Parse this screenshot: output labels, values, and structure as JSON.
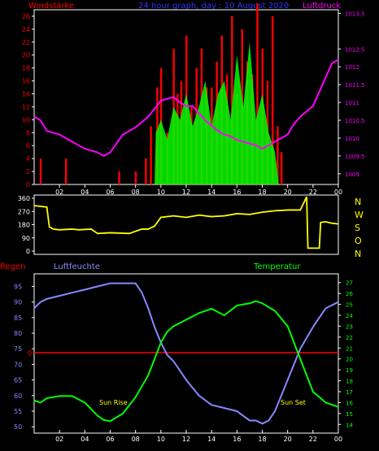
{
  "header": {
    "left": "Windstärke",
    "center": "24 hour graph, day : 10 August 2020",
    "right": "Luftdruck"
  },
  "lower_header": {
    "left": "Regen",
    "center": "Luftfeuchte",
    "right": "Temperatur"
  },
  "annotations": {
    "sunrise": "Sun Rise",
    "sunset": "Sun Set"
  },
  "colors": {
    "wind": "#ff0000",
    "gust": "#00ff00",
    "pressure": "#ff00ff",
    "direction": "#ffff00",
    "humidity": "#8888ff",
    "temperature": "#00ff00",
    "rain": "#ff0000",
    "header_blue": "#3333ff",
    "frame": "#ffffff"
  },
  "chart_data": [
    {
      "type": "bar",
      "panel": "wind",
      "x_ticks": [
        "02",
        "04",
        "06",
        "08",
        "10",
        "12",
        "14",
        "16",
        "18",
        "20",
        "22",
        "00"
      ],
      "y_ticks_left": [
        "0",
        "2",
        "4",
        "6",
        "8",
        "10",
        "12",
        "14",
        "16",
        "18",
        "20",
        "22",
        "24",
        "26"
      ],
      "y_ticks_right": [
        "1009",
        "1009.5",
        "1010",
        "1010.5",
        "1011",
        "1011.5",
        "1012",
        "1012.5",
        "1013.5"
      ],
      "series": [
        {
          "name": "Windstärke",
          "x": [
            0.5,
            2.5,
            6.7,
            8.0,
            8.8,
            9.2,
            9.7,
            10.0,
            10.5,
            11.0,
            11.3,
            11.6,
            12.0,
            12.4,
            12.8,
            13.2,
            13.6,
            14.0,
            14.4,
            14.8,
            15.2,
            15.6,
            16.0,
            16.4,
            16.8,
            17.2,
            17.6,
            18.0,
            18.4,
            18.8,
            19.2,
            19.5
          ],
          "values": [
            4,
            4,
            2,
            2,
            4,
            9,
            15,
            18,
            8,
            21,
            14,
            16,
            23,
            12,
            18,
            21,
            15,
            15,
            19,
            23,
            17,
            26,
            14,
            24,
            19,
            17,
            28,
            21,
            16,
            26,
            9,
            5
          ]
        },
        {
          "name": "Luftdruck",
          "x": [
            0.0,
            0.5,
            1.0,
            2.0,
            3.0,
            4.0,
            5.0,
            5.5,
            6.0,
            7.0,
            7.5,
            8.0,
            9.0,
            10.0,
            10.5,
            11.0,
            11.5,
            12.0,
            12.5,
            13.0,
            13.5,
            14.0,
            14.5,
            15.0,
            15.5,
            16.0,
            17.0,
            17.5,
            18.0,
            18.5,
            19.0,
            20.0,
            20.5,
            21.0,
            22.0,
            22.5,
            23.0,
            23.5,
            24.0
          ],
          "values": [
            1010.6,
            1010.5,
            1010.2,
            1010.1,
            1009.9,
            1009.7,
            1009.6,
            1009.5,
            1009.6,
            1010.1,
            1010.2,
            1010.3,
            1010.6,
            1011.05,
            1011.1,
            1011.15,
            1011.0,
            1010.9,
            1010.9,
            1010.7,
            1010.5,
            1010.35,
            1010.2,
            1010.1,
            1010.05,
            1009.95,
            1009.85,
            1009.8,
            1009.7,
            1009.8,
            1009.9,
            1010.1,
            1010.4,
            1010.6,
            1010.9,
            1011.3,
            1011.7,
            1012.1,
            1012.2
          ]
        }
      ]
    },
    {
      "type": "line",
      "panel": "direction",
      "y_ticks": [
        "360",
        "270",
        "180",
        "90",
        "0"
      ],
      "y_labels_right": [
        "N",
        "W",
        "S",
        "O",
        "N"
      ],
      "series": [
        {
          "name": "Windrichtung",
          "x": [
            0.0,
            1.0,
            1.2,
            1.5,
            2.0,
            3.0,
            3.5,
            4.5,
            5.0,
            6.0,
            7.5,
            8.5,
            9.0,
            9.5,
            10.0,
            11.0,
            12.0,
            13.0,
            13.5,
            14.0,
            15.0,
            16.0,
            17.0,
            18.0,
            19.0,
            20.0,
            21.0,
            21.5,
            21.6,
            22.5,
            22.6,
            23.0,
            23.5,
            24.0
          ],
          "values": [
            310,
            300,
            165,
            150,
            145,
            150,
            145,
            150,
            120,
            125,
            120,
            150,
            150,
            170,
            230,
            240,
            230,
            245,
            240,
            235,
            240,
            255,
            250,
            265,
            275,
            280,
            280,
            370,
            20,
            20,
            195,
            200,
            190,
            185
          ]
        }
      ]
    },
    {
      "type": "line",
      "panel": "humidity_temperature",
      "y_ticks_left": [
        "50",
        "55",
        "60",
        "65",
        "70",
        "75",
        "80",
        "85",
        "90",
        "95"
      ],
      "y_ticks_right": [
        "14",
        "15",
        "16",
        "17",
        "18",
        "19",
        "20",
        "21",
        "22",
        "23",
        "24",
        "25",
        "26",
        "27"
      ],
      "series": [
        {
          "name": "Luftfeuchte",
          "x": [
            0.0,
            0.5,
            1.0,
            2.0,
            3.0,
            4.0,
            5.0,
            6.0,
            7.0,
            8.0,
            8.5,
            9.0,
            9.5,
            10.0,
            10.5,
            11.0,
            11.5,
            12.0,
            13.0,
            14.0,
            15.0,
            16.0,
            17.0,
            17.5,
            18.0,
            18.5,
            19.0,
            20.0,
            21.0,
            22.0,
            23.0,
            24.0
          ],
          "values": [
            88,
            90,
            91,
            92,
            93,
            94,
            95,
            96,
            96,
            96,
            93,
            88,
            82,
            77,
            73,
            71,
            68,
            65,
            60,
            57,
            56,
            55,
            52,
            52,
            51,
            52,
            55,
            65,
            75,
            82,
            88,
            90
          ]
        },
        {
          "name": "Temperatur",
          "x": [
            0.0,
            0.5,
            1.0,
            2.0,
            3.0,
            4.0,
            5.0,
            5.5,
            6.0,
            7.0,
            8.0,
            9.0,
            9.5,
            10.0,
            10.5,
            11.0,
            12.0,
            13.0,
            14.0,
            15.0,
            16.0,
            17.0,
            17.5,
            18.0,
            19.0,
            20.0,
            21.0,
            22.0,
            23.0,
            24.0
          ],
          "values": [
            16.2,
            16.0,
            16.4,
            16.6,
            16.6,
            16.0,
            14.8,
            14.4,
            14.3,
            15.0,
            16.5,
            18.5,
            20.0,
            21.5,
            22.5,
            23.0,
            23.6,
            24.2,
            24.6,
            24.0,
            24.9,
            25.1,
            25.3,
            25.1,
            24.4,
            23.0,
            20.0,
            17.0,
            16.0,
            15.6
          ]
        },
        {
          "name": "Regen",
          "x": [
            0,
            24
          ],
          "values": [
            0,
            0
          ]
        }
      ]
    }
  ]
}
